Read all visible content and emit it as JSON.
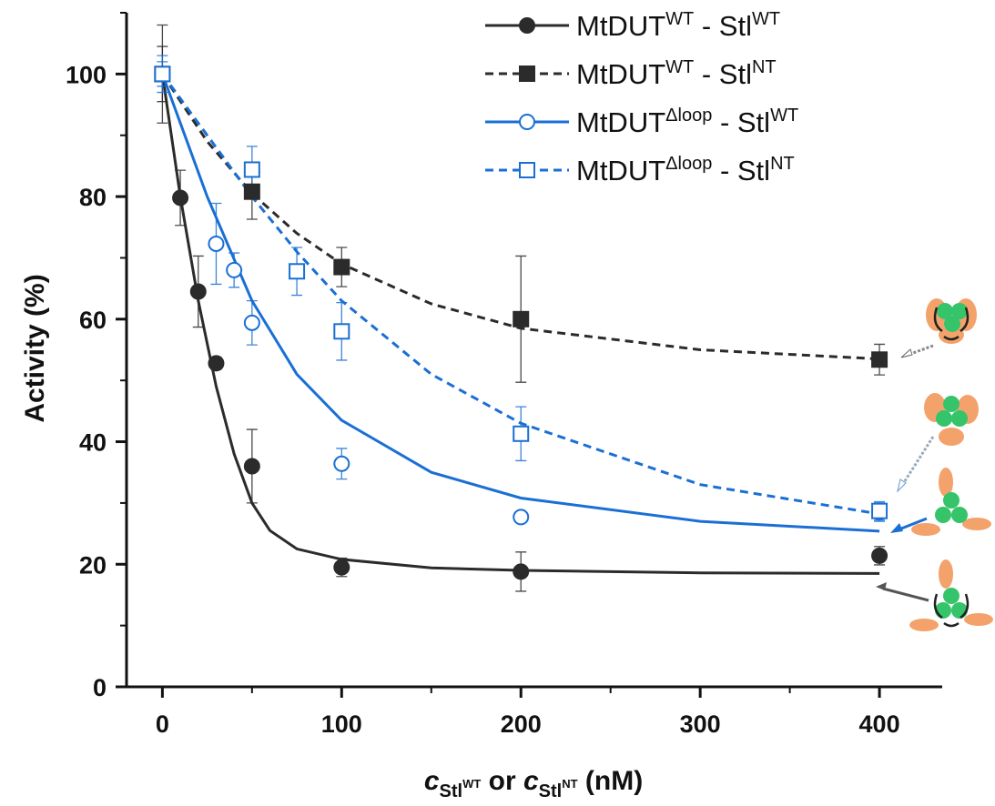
{
  "chart_data": {
    "type": "scatter",
    "ylabel": "Activity (%)",
    "xlabel": [
      "c",
      "Stl",
      "WT",
      " or ",
      "c",
      "Stl",
      "NT",
      " (nM)"
    ],
    "xlim": [
      -20,
      435
    ],
    "ylim": [
      0,
      110
    ],
    "xticks": [
      0,
      100,
      200,
      300,
      400
    ],
    "yticks": [
      0,
      20,
      40,
      60,
      80,
      100
    ],
    "xminorticks": [
      50,
      150,
      250,
      350
    ],
    "yminorticks": [
      10,
      30,
      50,
      70,
      90,
      110
    ],
    "legend_loc": "upper right",
    "series": [
      {
        "name": [
          "MtDUT",
          "WT",
          " - Stl",
          "WT"
        ],
        "color": "#2b2b2b",
        "marker": "circle",
        "filled": true,
        "dashed": false,
        "x": [
          0,
          10,
          20,
          30,
          50,
          100,
          200,
          400
        ],
        "values": [
          100,
          79.8,
          64.5,
          52.8,
          36,
          19.5,
          18.8,
          21.4
        ],
        "errors": [
          8,
          4.5,
          5.8,
          1,
          6,
          1.5,
          3.2,
          1.5
        ],
        "fit": {
          "x": [
            0,
            10,
            20,
            30,
            40,
            50,
            60,
            75,
            100,
            150,
            200,
            300,
            400
          ],
          "y": [
            100,
            80,
            63,
            49,
            38,
            30,
            25.5,
            22.5,
            20.8,
            19.4,
            19,
            18.6,
            18.5
          ]
        }
      },
      {
        "name": [
          "MtDUT",
          "WT",
          " - Stl",
          "NT"
        ],
        "color": "#2b2b2b",
        "marker": "square",
        "filled": true,
        "dashed": true,
        "x": [
          0,
          50,
          100,
          200,
          400
        ],
        "values": [
          100,
          80.8,
          68.5,
          60,
          53.4
        ],
        "errors": [
          4.5,
          4.5,
          3.2,
          10.3,
          2.5
        ],
        "fit": {
          "x": [
            0,
            25,
            50,
            75,
            100,
            150,
            200,
            300,
            400
          ],
          "y": [
            100,
            89,
            80.5,
            74,
            69,
            62.5,
            58.5,
            55,
            53.5
          ]
        }
      },
      {
        "name": [
          "MtDUT",
          "Δloop",
          " - Stl",
          "WT"
        ],
        "color": "#1a6fd4",
        "marker": "circle",
        "filled": false,
        "dashed": false,
        "x": [
          0,
          30,
          40,
          50,
          100,
          200,
          400
        ],
        "values": [
          100,
          72.3,
          68,
          59.4,
          36.4,
          27.7,
          28.5
        ],
        "errors": [
          3,
          6.6,
          2.8,
          3.6,
          2.5,
          0,
          1.5
        ],
        "fit": {
          "x": [
            0,
            10,
            25,
            50,
            75,
            100,
            150,
            200,
            300,
            400
          ],
          "y": [
            100,
            92,
            80,
            63,
            51,
            43.5,
            35,
            30.8,
            27,
            25.4
          ]
        }
      },
      {
        "name": [
          "MtDUT",
          "Δloop",
          " - Stl",
          "NT"
        ],
        "color": "#1a6fd4",
        "marker": "square",
        "filled": false,
        "dashed": true,
        "x": [
          0,
          50,
          75,
          100,
          200,
          400
        ],
        "values": [
          100,
          84.4,
          67.8,
          58,
          41.3,
          28.7
        ],
        "errors": [
          2,
          3.8,
          3.9,
          4.7,
          4.4,
          1.5
        ],
        "fit": {
          "x": [
            0,
            25,
            50,
            75,
            100,
            150,
            200,
            300,
            400
          ],
          "y": [
            100,
            90,
            80,
            71,
            63,
            51,
            43,
            33,
            28.2
          ]
        }
      }
    ]
  }
}
